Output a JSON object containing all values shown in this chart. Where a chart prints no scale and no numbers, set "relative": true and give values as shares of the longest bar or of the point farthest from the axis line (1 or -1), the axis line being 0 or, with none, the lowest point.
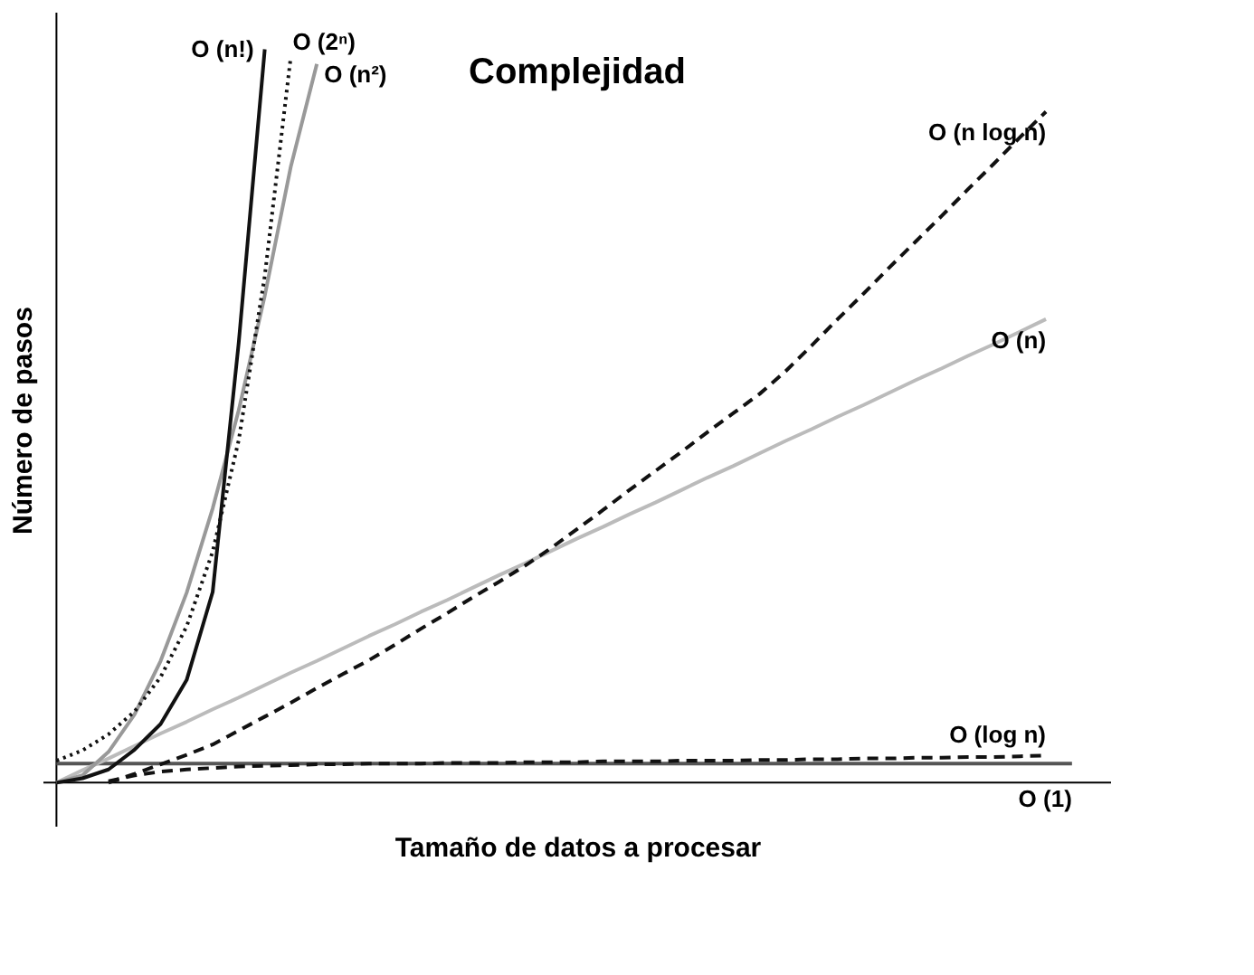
{
  "chart_data": {
    "type": "line",
    "title": "Complejidad",
    "xlabel": "Tamaño de datos a procesar",
    "ylabel": "Número de pasos",
    "relative": true,
    "marker": "none",
    "categories": [
      null,
      null,
      null,
      null,
      null,
      null,
      null,
      null,
      null,
      null,
      null,
      null,
      null,
      null,
      null,
      null,
      null,
      null,
      null,
      null,
      null,
      null,
      null,
      null,
      null,
      null,
      null,
      null,
      null,
      null,
      null,
      null,
      null,
      null,
      null,
      null,
      null,
      null,
      null,
      null,
      null
    ],
    "series": [
      {
        "name": "O (1)",
        "color": "#555555",
        "line_style": "solid",
        "values": [
          0.026,
          0.026,
          0.026,
          0.026,
          0.026,
          0.026,
          0.026,
          0.026,
          0.026,
          0.026,
          0.026,
          0.026,
          0.026,
          0.026,
          0.026,
          0.026,
          0.026,
          0.026,
          0.026,
          0.026,
          0.026,
          0.026,
          0.026,
          0.026,
          0.026,
          0.026,
          0.026,
          0.026,
          0.026,
          0.026,
          0.026,
          0.026,
          0.026,
          0.026,
          0.026,
          0.026,
          0.026,
          0.026,
          0.026,
          0.026,
          null
        ]
      },
      {
        "name": "O (log n)",
        "color": "#111111",
        "line_style": "dashed",
        "values": [
          null,
          null,
          0.002,
          0.01,
          0.015,
          0.018,
          0.02,
          0.022,
          0.023,
          0.024,
          0.025,
          0.025,
          0.026,
          0.026,
          0.026,
          0.027,
          0.027,
          0.027,
          0.028,
          0.028,
          0.028,
          0.029,
          0.029,
          0.029,
          0.03,
          0.03,
          0.03,
          0.031,
          0.031,
          0.032,
          0.032,
          0.033,
          0.033,
          0.034,
          0.034,
          0.035,
          0.035,
          0.036,
          0.037,
          null,
          null
        ]
      },
      {
        "name": "O (n)",
        "color": "#bbbbbb",
        "line_style": "solid",
        "values": [
          0,
          0.017,
          0.033,
          0.05,
          0.067,
          0.083,
          0.1,
          0.116,
          0.133,
          0.15,
          0.166,
          0.183,
          0.2,
          0.216,
          0.233,
          0.249,
          0.266,
          0.283,
          0.299,
          0.316,
          0.333,
          0.349,
          0.366,
          0.382,
          0.399,
          0.416,
          0.432,
          0.449,
          0.466,
          0.482,
          0.499,
          0.515,
          0.532,
          0.549,
          0.565,
          0.582,
          0.598,
          0.615,
          0.632,
          null,
          null
        ]
      },
      {
        "name": "O (n log n)",
        "color": "#111111",
        "line_style": "dashed",
        "values": [
          null,
          null,
          0,
          0.012,
          0.025,
          0.038,
          0.052,
          0.071,
          0.09,
          0.109,
          0.129,
          0.148,
          0.167,
          0.188,
          0.21,
          0.231,
          0.253,
          0.274,
          0.296,
          0.32,
          0.346,
          0.372,
          0.399,
          0.425,
          0.451,
          0.478,
          0.504,
          0.53,
          0.561,
          0.596,
          0.632,
          0.667,
          0.703,
          0.738,
          0.773,
          0.809,
          0.844,
          0.88,
          0.915,
          null,
          null
        ]
      },
      {
        "name": "O (n²)",
        "color": "#999999",
        "line_style": "solid",
        "values": [
          0,
          0.01,
          0.042,
          0.093,
          0.166,
          0.259,
          0.374,
          0.508,
          0.664,
          0.84,
          0.98,
          null,
          null,
          null,
          null,
          null,
          null,
          null,
          null,
          null,
          null,
          null,
          null,
          null,
          null,
          null,
          null,
          null,
          null,
          null,
          null,
          null,
          null,
          null,
          null,
          null,
          null,
          null,
          null,
          null,
          null
        ]
      },
      {
        "name": "O (2ⁿ)",
        "color": "#111111",
        "line_style": "dotted",
        "values": [
          0.03,
          0.044,
          0.066,
          0.097,
          0.144,
          0.213,
          0.315,
          0.467,
          0.691,
          0.99,
          null,
          null,
          null,
          null,
          null,
          null,
          null,
          null,
          null,
          null,
          null,
          null,
          null,
          null,
          null,
          null,
          null,
          null,
          null,
          null,
          null,
          null,
          null,
          null,
          null,
          null,
          null,
          null,
          null,
          null,
          null
        ]
      },
      {
        "name": "O (n!)",
        "color": "#111111",
        "line_style": "solid",
        "values": [
          0,
          0.006,
          0.018,
          0.045,
          0.08,
          0.14,
          0.26,
          0.6,
          1.0,
          null,
          null,
          null,
          null,
          null,
          null,
          null,
          null,
          null,
          null,
          null,
          null,
          null,
          null,
          null,
          null,
          null,
          null,
          null,
          null,
          null,
          null,
          null,
          null,
          null,
          null,
          null,
          null,
          null,
          null,
          null,
          null
        ]
      }
    ]
  }
}
